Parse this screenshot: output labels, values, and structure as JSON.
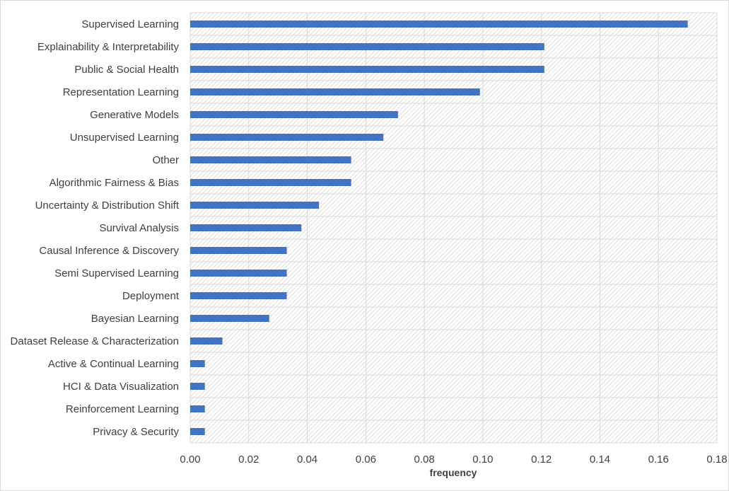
{
  "chart_data": {
    "type": "bar",
    "orientation": "horizontal",
    "categories": [
      "Supervised Learning",
      "Explainability & Interpretability",
      "Public & Social Health",
      "Representation Learning",
      "Generative Models",
      "Unsupervised Learning",
      "Other",
      "Algorithmic Fairness & Bias",
      "Uncertainty & Distribution Shift",
      "Survival Analysis",
      "Causal Inference & Discovery",
      "Semi Supervised Learning",
      "Deployment",
      "Bayesian Learning",
      "Dataset Release & Characterization",
      "Active & Continual Learning",
      "HCI & Data Visualization",
      "Reinforcement Learning",
      "Privacy & Security"
    ],
    "values": [
      0.17,
      0.121,
      0.121,
      0.099,
      0.071,
      0.066,
      0.055,
      0.055,
      0.044,
      0.038,
      0.033,
      0.033,
      0.033,
      0.027,
      0.011,
      0.005,
      0.005,
      0.005,
      0.005
    ],
    "title": "",
    "xlabel": "frequency",
    "ylabel": "",
    "xlim": [
      0,
      0.18
    ],
    "xticks": [
      "0.00",
      "0.02",
      "0.04",
      "0.06",
      "0.08",
      "0.10",
      "0.12",
      "0.14",
      "0.16",
      "0.18"
    ],
    "grid": true,
    "legend": "none",
    "colors": {
      "bar": "#4472C4",
      "grid": "#d9d9d9",
      "hatch": "#d4d4d4",
      "text": "#404040"
    }
  }
}
